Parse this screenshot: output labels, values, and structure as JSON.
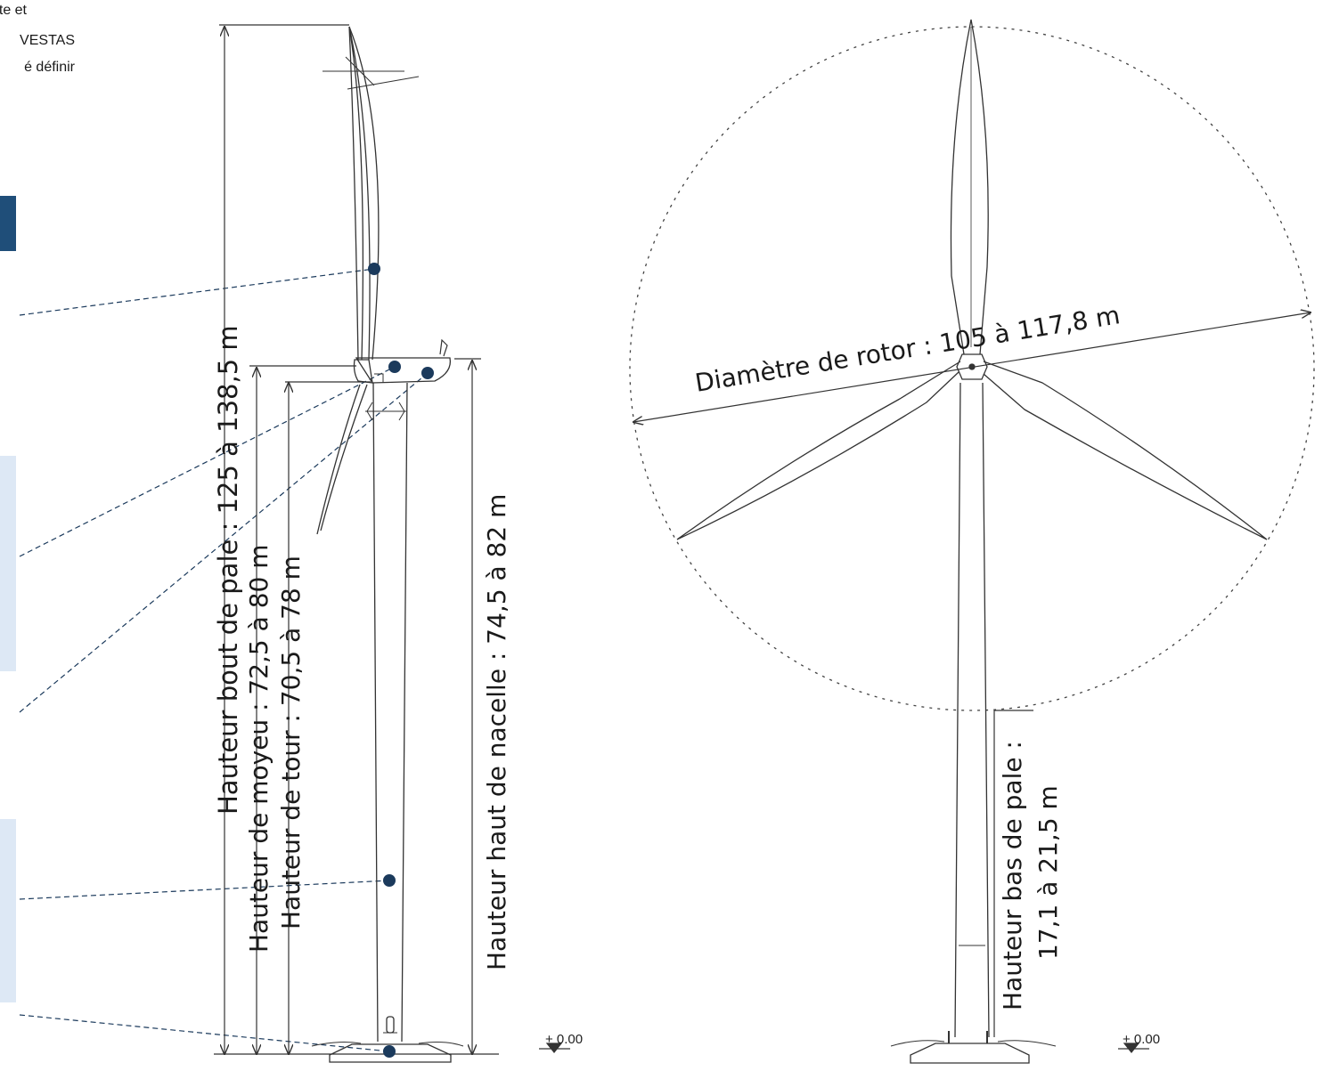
{
  "intro_text": [
    "u site et",
    "VESTAS",
    "é définir"
  ],
  "left_view": {
    "label_tip_height": "Hauteur bout de pale : 125 à 138,5 m",
    "label_hub_height": "Hauteur de moyeu : 72,5 à 80 m",
    "label_tower_height": "Hauteur de tour : 70,5 à 78 m",
    "label_nacelle_height": "Hauteur haut de nacelle : 74,5 à 82 m",
    "ground_level": "+ 0.00"
  },
  "right_view": {
    "label_rotor_diameter": "Diamètre de rotor : 105 à 117,8 m",
    "label_lower_tip_line1": "Hauteur bas de pale :",
    "label_lower_tip_line2": "17,1 à 21,5 m",
    "ground_level": "+ 0.00"
  },
  "colors": {
    "callout_dot": "#1b3a5c",
    "side_tab_dark": "#1f4e79",
    "side_panel_light": "#dde8f5",
    "line": "#333333"
  }
}
